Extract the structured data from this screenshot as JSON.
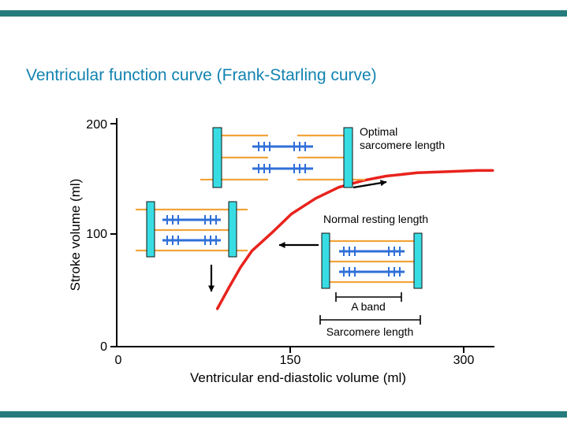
{
  "slide": {
    "title": "Ventricular function curve (Frank-Starling curve)",
    "title_color": "#1283b0",
    "border_bar_color": "#267c7c",
    "background": "#ffffff"
  },
  "chart_data": {
    "type": "line",
    "title": "",
    "xlabel": "Ventricular end-diastolic volume (ml)",
    "ylabel": "Stroke volume (ml)",
    "xlim": [
      0,
      325
    ],
    "ylim": [
      0,
      200
    ],
    "x_ticks": [
      0,
      150,
      300
    ],
    "y_ticks": [
      0,
      100,
      200
    ],
    "x_tick_labels": [
      "0",
      "150",
      "300"
    ],
    "y_tick_labels": [
      "0",
      "100",
      "200"
    ],
    "grid": false,
    "legend": "none",
    "series": [
      {
        "name": "Frank-Starling ventricular function curve",
        "color": "#e8231d",
        "x": [
          87,
          97,
          107,
          117,
          134,
          151,
          172,
          192,
          213,
          233,
          260,
          288,
          312,
          325
        ],
        "y": [
          34,
          53,
          71,
          86,
          102,
          119,
          133,
          143,
          149,
          153,
          156,
          157,
          158,
          158
        ]
      }
    ],
    "annotations": {
      "optimal_line1": "Optimal",
      "optimal_line2": "sarcomere length",
      "normal": "Normal resting length",
      "a_band": "A band",
      "sarcomere_length": "Sarcomere length"
    }
  },
  "diagram_colors": {
    "z_disc_cyan": "#38dde4",
    "actin_orange": "#f2a33a",
    "myosin_blue": "#2f6fd8"
  }
}
